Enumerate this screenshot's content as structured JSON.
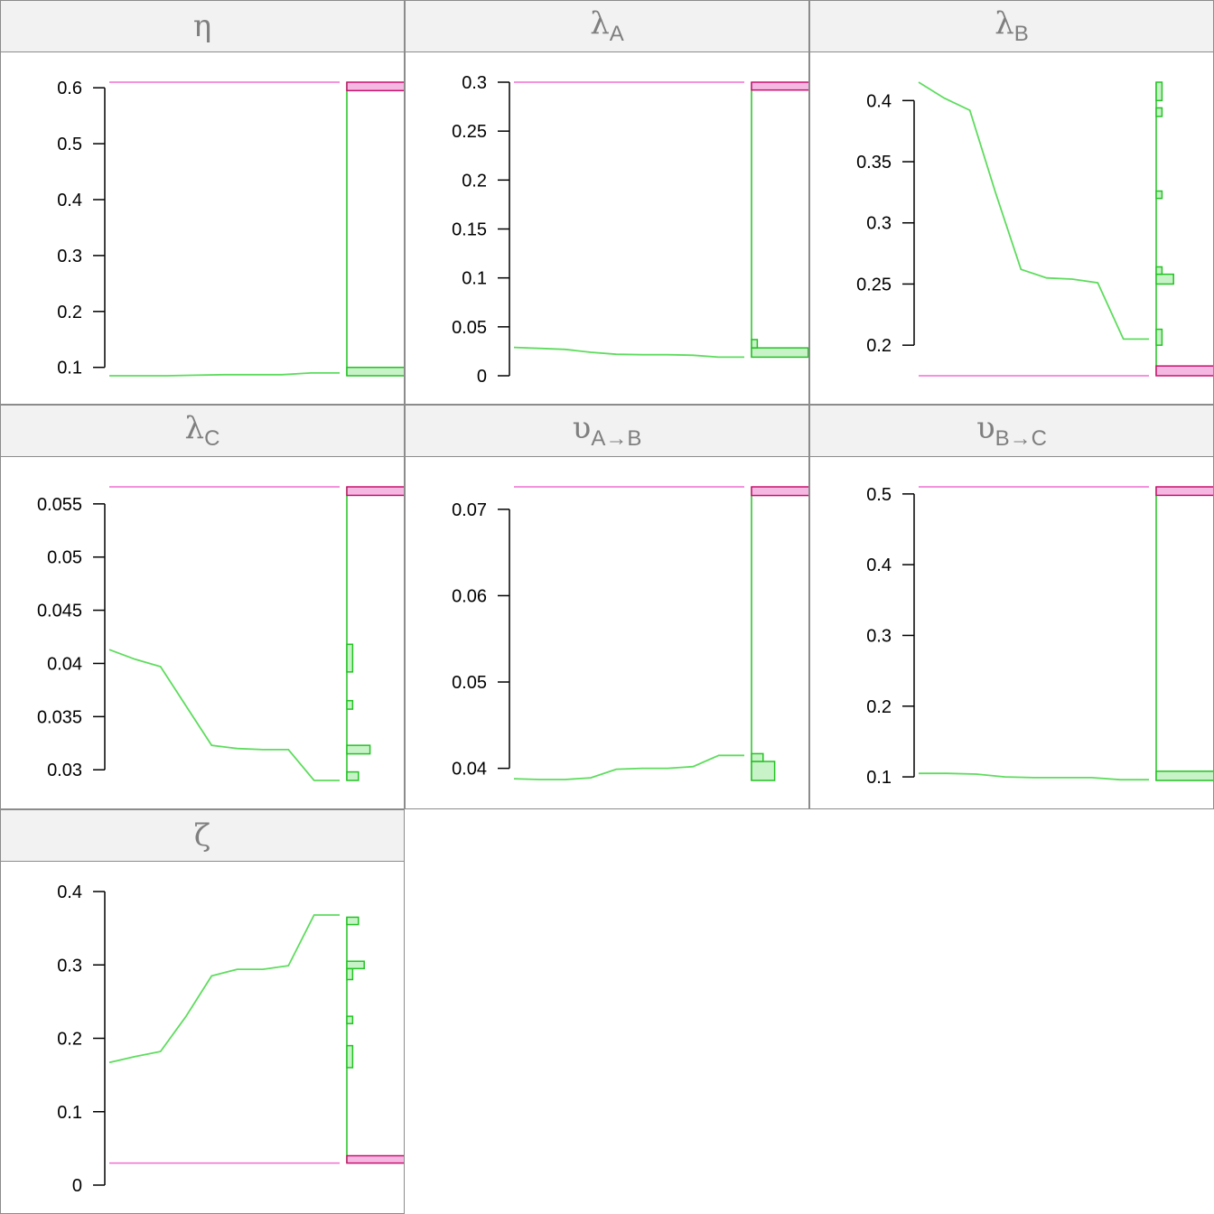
{
  "colors": {
    "trace": "#5ddc5d",
    "hist_stroke": "#22c322",
    "hist_fill": "#c8f2c8",
    "ref_line": "#f06ed2",
    "ref_fill": "#f5b8e3",
    "ref_stroke": "#c8106e",
    "strip_bg": "#f2f2f2",
    "strip_text": "#7f7f7f"
  },
  "chart_data": [
    {
      "type": "line",
      "title": "η",
      "ylim": [
        0.085,
        0.61
      ],
      "ticks": [
        0.1,
        0.2,
        0.3,
        0.4,
        0.5,
        0.6
      ],
      "tick_labels": [
        "0.1",
        "0.2",
        "0.3",
        "0.4",
        "0.5",
        "0.6"
      ],
      "series": [
        {
          "values": [
            0.085,
            0.085,
            0.085,
            0.086,
            0.087,
            0.087,
            0.087,
            0.09,
            0.09
          ]
        }
      ],
      "reference": 0.61,
      "hist": [
        {
          "lo": 0.085,
          "hi": 0.1,
          "w": 1.0
        }
      ],
      "ref_bin": [
        0.595,
        0.61
      ]
    },
    {
      "type": "line",
      "title": "λ_A",
      "ylim": [
        0.0,
        0.3
      ],
      "ticks": [
        0,
        0.05,
        0.1,
        0.15,
        0.2,
        0.25,
        0.3
      ],
      "tick_labels": [
        "0",
        "0.05",
        "0.1",
        "0.15",
        "0.2",
        "0.25",
        "0.3"
      ],
      "series": [
        {
          "values": [
            0.029,
            0.028,
            0.027,
            0.024,
            0.022,
            0.0215,
            0.0215,
            0.021,
            0.019,
            0.019
          ]
        }
      ],
      "reference": 0.3,
      "hist": [
        {
          "lo": 0.019,
          "hi": 0.0285,
          "w": 0.98
        },
        {
          "lo": 0.0285,
          "hi": 0.037,
          "w": 0.1
        }
      ],
      "ref_bin": [
        0.292,
        0.3
      ]
    },
    {
      "type": "line",
      "title": "λ_B",
      "ylim": [
        0.175,
        0.415
      ],
      "ticks": [
        0.2,
        0.25,
        0.3,
        0.35,
        0.4
      ],
      "tick_labels": [
        "0.2",
        "0.25",
        "0.3",
        "0.35",
        "0.4"
      ],
      "series": [
        {
          "values": [
            0.415,
            0.402,
            0.392,
            0.325,
            0.262,
            0.255,
            0.254,
            0.251,
            0.205,
            0.205
          ]
        }
      ],
      "reference": 0.175,
      "hist": [
        {
          "lo": 0.2,
          "hi": 0.213,
          "w": 0.1
        },
        {
          "lo": 0.25,
          "hi": 0.258,
          "w": 0.3
        },
        {
          "lo": 0.258,
          "hi": 0.264,
          "w": 0.1
        },
        {
          "lo": 0.32,
          "hi": 0.326,
          "w": 0.1
        },
        {
          "lo": 0.387,
          "hi": 0.394,
          "w": 0.1
        },
        {
          "lo": 0.4,
          "hi": 0.415,
          "w": 0.1
        }
      ],
      "ref_bin": [
        0.175,
        0.183
      ]
    },
    {
      "type": "line",
      "title": "λ_C",
      "ylim": [
        0.029,
        0.0566
      ],
      "ticks": [
        0.03,
        0.035,
        0.04,
        0.045,
        0.05,
        0.055
      ],
      "tick_labels": [
        "0.03",
        "0.035",
        "0.04",
        "0.045",
        "0.05",
        "0.055"
      ],
      "series": [
        {
          "values": [
            0.0413,
            0.0404,
            0.0397,
            0.036,
            0.0323,
            0.032,
            0.0319,
            0.0319,
            0.029,
            0.029
          ]
        }
      ],
      "reference": 0.0566,
      "hist": [
        {
          "lo": 0.029,
          "hi": 0.0298,
          "w": 0.2
        },
        {
          "lo": 0.0315,
          "hi": 0.0323,
          "w": 0.4
        },
        {
          "lo": 0.0357,
          "hi": 0.0365,
          "w": 0.1
        },
        {
          "lo": 0.0392,
          "hi": 0.0418,
          "w": 0.1
        }
      ],
      "ref_bin": [
        0.0558,
        0.0566
      ]
    },
    {
      "type": "line",
      "title": "υ_A→B",
      "ylim": [
        0.0386,
        0.0726
      ],
      "ticks": [
        0.04,
        0.05,
        0.06,
        0.07
      ],
      "tick_labels": [
        "0.04",
        "0.05",
        "0.06",
        "0.07"
      ],
      "series": [
        {
          "values": [
            0.0388,
            0.0387,
            0.0387,
            0.0389,
            0.0399,
            0.04,
            0.04,
            0.0402,
            0.0415,
            0.0415
          ]
        }
      ],
      "reference": 0.0726,
      "hist": [
        {
          "lo": 0.0386,
          "hi": 0.0408,
          "w": 0.4
        },
        {
          "lo": 0.0408,
          "hi": 0.0417,
          "w": 0.2
        }
      ],
      "ref_bin": [
        0.0716,
        0.0726
      ]
    },
    {
      "type": "line",
      "title": "υ_B→C",
      "ylim": [
        0.095,
        0.51
      ],
      "ticks": [
        0.1,
        0.2,
        0.3,
        0.4,
        0.5
      ],
      "tick_labels": [
        "0.1",
        "0.2",
        "0.3",
        "0.4",
        "0.5"
      ],
      "series": [
        {
          "values": [
            0.105,
            0.105,
            0.104,
            0.1,
            0.099,
            0.099,
            0.099,
            0.096,
            0.096
          ]
        }
      ],
      "reference": 0.51,
      "hist": [
        {
          "lo": 0.095,
          "hi": 0.108,
          "w": 1.0
        }
      ],
      "ref_bin": [
        0.498,
        0.51
      ]
    },
    {
      "type": "line",
      "title": "ζ",
      "ylim": [
        0.0,
        0.4
      ],
      "ticks": [
        0,
        0.1,
        0.2,
        0.3,
        0.4
      ],
      "tick_labels": [
        "0",
        "0.1",
        "0.2",
        "0.3",
        "0.4"
      ],
      "series": [
        {
          "values": [
            0.167,
            0.175,
            0.182,
            0.23,
            0.285,
            0.294,
            0.294,
            0.299,
            0.368,
            0.368
          ]
        }
      ],
      "reference": 0.03,
      "hist": [
        {
          "lo": 0.16,
          "hi": 0.19,
          "w": 0.1
        },
        {
          "lo": 0.22,
          "hi": 0.23,
          "w": 0.1
        },
        {
          "lo": 0.28,
          "hi": 0.295,
          "w": 0.1
        },
        {
          "lo": 0.295,
          "hi": 0.305,
          "w": 0.3
        },
        {
          "lo": 0.355,
          "hi": 0.365,
          "w": 0.2
        }
      ],
      "ref_bin": [
        0.03,
        0.04
      ]
    }
  ]
}
